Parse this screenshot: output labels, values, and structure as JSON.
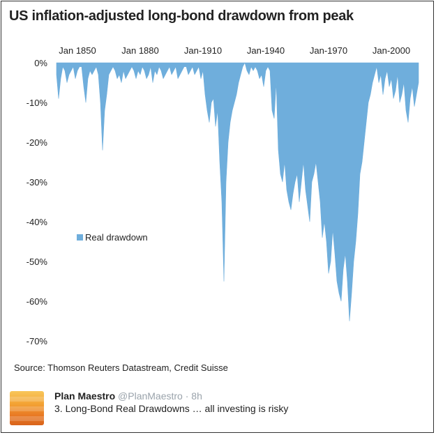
{
  "chart_data": {
    "type": "area",
    "title": "US inflation-adjusted long-bond drawdown from peak",
    "source": "Source: Thomson Reuters Datastream, Credit Suisse",
    "xlim": [
      1840,
      2013
    ],
    "ylim": [
      -70,
      0
    ],
    "x_ticks": [
      {
        "value": 1850,
        "label": "Jan 1850"
      },
      {
        "value": 1880,
        "label": "Jan 1880"
      },
      {
        "value": 1910,
        "label": "Jan-1910"
      },
      {
        "value": 1940,
        "label": "Jan-1940"
      },
      {
        "value": 1970,
        "label": "Jan-1970"
      },
      {
        "value": 2000,
        "label": "Jan-2000"
      }
    ],
    "y_ticks": [
      {
        "value": 0,
        "label": "0%"
      },
      {
        "value": -10,
        "label": "-10%"
      },
      {
        "value": -20,
        "label": "-20%"
      },
      {
        "value": -30,
        "label": "-30%"
      },
      {
        "value": -40,
        "label": "-40%"
      },
      {
        "value": -50,
        "label": "-50%"
      },
      {
        "value": -60,
        "label": "-60%"
      },
      {
        "value": -70,
        "label": "-70%"
      }
    ],
    "legend": "left-center",
    "series": [
      {
        "name": "Real drawdown",
        "color": "#6faedc",
        "x": [
          1840,
          1841,
          1842,
          1843,
          1844,
          1845,
          1846,
          1847,
          1848,
          1849,
          1850,
          1851,
          1852,
          1853,
          1854,
          1855,
          1856,
          1857,
          1858,
          1859,
          1860,
          1861,
          1862,
          1863,
          1864,
          1865,
          1866,
          1867,
          1868,
          1869,
          1870,
          1871,
          1872,
          1873,
          1874,
          1875,
          1876,
          1877,
          1878,
          1879,
          1880,
          1881,
          1882,
          1883,
          1884,
          1885,
          1886,
          1887,
          1888,
          1889,
          1890,
          1891,
          1892,
          1893,
          1894,
          1895,
          1896,
          1897,
          1898,
          1899,
          1900,
          1901,
          1902,
          1903,
          1904,
          1905,
          1906,
          1907,
          1908,
          1909,
          1910,
          1911,
          1912,
          1913,
          1914,
          1915,
          1916,
          1917,
          1918,
          1919,
          1920,
          1921,
          1922,
          1923,
          1924,
          1925,
          1926,
          1927,
          1928,
          1929,
          1930,
          1931,
          1932,
          1933,
          1934,
          1935,
          1936,
          1937,
          1938,
          1939,
          1940,
          1941,
          1942,
          1943,
          1944,
          1945,
          1946,
          1947,
          1948,
          1949,
          1950,
          1951,
          1952,
          1953,
          1954,
          1955,
          1956,
          1957,
          1958,
          1959,
          1960,
          1961,
          1962,
          1963,
          1964,
          1965,
          1966,
          1967,
          1968,
          1969,
          1970,
          1971,
          1972,
          1973,
          1974,
          1975,
          1976,
          1977,
          1978,
          1979,
          1980,
          1981,
          1982,
          1983,
          1984,
          1985,
          1986,
          1987,
          1988,
          1989,
          1990,
          1991,
          1992,
          1993,
          1994,
          1995,
          1996,
          1997,
          1998,
          1999,
          2000,
          2001,
          2002,
          2003,
          2004,
          2005,
          2006,
          2007,
          2008,
          2009,
          2010,
          2011,
          2012,
          2013
        ],
        "values": [
          -3,
          -9,
          -4,
          -1,
          -2,
          -5,
          -3,
          -2,
          -1,
          -4,
          -2,
          -1,
          -1,
          -6,
          -10,
          -4,
          -2,
          -3,
          -2,
          -1,
          -3,
          -10,
          -22,
          -12,
          -8,
          -3,
          -2,
          -1,
          -2,
          -4,
          -3,
          -5,
          -2,
          -4,
          -3,
          -2,
          -1,
          -2,
          -4,
          -2,
          -3,
          -1,
          -2,
          -4,
          -3,
          -1,
          -5,
          -2,
          -3,
          -1,
          -2,
          -4,
          -3,
          -2,
          -1,
          -3,
          -2,
          -1,
          -4,
          -3,
          -2,
          -1,
          -1,
          -3,
          -2,
          -1,
          -3,
          -2,
          -1,
          -4,
          -2,
          -8,
          -12,
          -15,
          -10,
          -9,
          -16,
          -12,
          -25,
          -35,
          -55,
          -30,
          -20,
          -15,
          -12,
          -10,
          -8,
          -5,
          -3,
          -1,
          0,
          -2,
          -3,
          -1,
          -2,
          -1,
          -2,
          -4,
          -3,
          -6,
          -2,
          -1,
          -2,
          -12,
          -14,
          -5,
          -22,
          -28,
          -30,
          -25,
          -32,
          -35,
          -37,
          -33,
          -30,
          -28,
          -35,
          -30,
          -25,
          -32,
          -36,
          -40,
          -30,
          -28,
          -25,
          -30,
          -35,
          -44,
          -40,
          -45,
          -53,
          -50,
          -42,
          -48,
          -55,
          -58,
          -60,
          -52,
          -48,
          -55,
          -65,
          -58,
          -50,
          -45,
          -38,
          -28,
          -25,
          -20,
          -15,
          -10,
          -8,
          -5,
          -3,
          -1,
          -5,
          -3,
          -8,
          -4,
          -2,
          -6,
          -4,
          -9,
          -7,
          -3,
          -10,
          -8,
          -5,
          -12,
          -15,
          -9,
          -6,
          -11,
          -8,
          -5
        ]
      }
    ]
  },
  "tweet": {
    "name": "Plan Maestro",
    "handle": "@PlanMaestro",
    "separator": "·",
    "time": "8h",
    "text": "3. Long-Bond Real Drawdowns … all investing is risky"
  }
}
